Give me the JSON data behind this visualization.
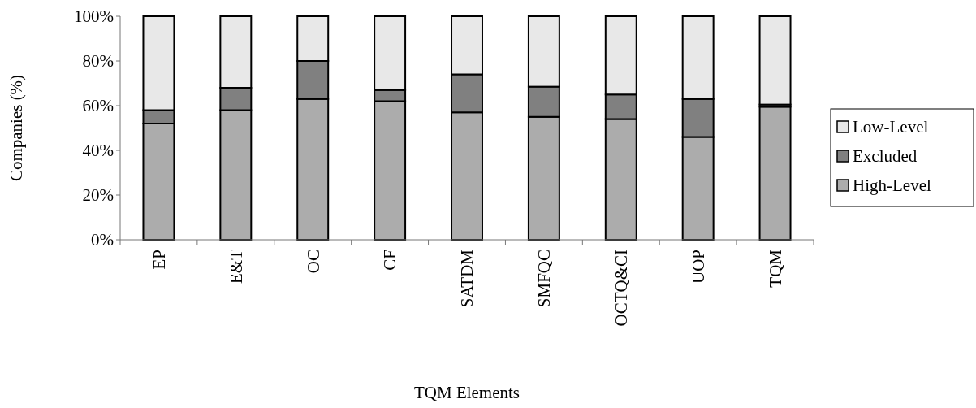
{
  "chart_data": {
    "type": "bar",
    "stacked": true,
    "xlabel": "TQM Elements",
    "ylabel": "Companies (%)",
    "categories": [
      "EP",
      "E&T",
      "OC",
      "CF",
      "SATDM",
      "SMFQC",
      "OCTQ&CI",
      "UOP",
      "TQM"
    ],
    "series": [
      {
        "name": "High-Level",
        "color": "#acacac",
        "values": [
          52,
          58,
          63,
          62,
          57,
          55,
          54,
          46,
          59.5
        ]
      },
      {
        "name": "Excluded",
        "color": "#808080",
        "values": [
          6,
          10,
          17,
          5,
          17,
          13.5,
          11,
          17,
          1
        ]
      },
      {
        "name": "Low-Level",
        "color": "#e8e8e8",
        "values": [
          42,
          32,
          20,
          33,
          26,
          31.5,
          35,
          37,
          39.5
        ]
      }
    ],
    "ylim": [
      0,
      100
    ],
    "yticks": [
      {
        "value": 0,
        "label": "0%"
      },
      {
        "value": 20,
        "label": "20%"
      },
      {
        "value": 40,
        "label": "40%"
      },
      {
        "value": 60,
        "label": "60%"
      },
      {
        "value": 80,
        "label": "80%"
      },
      {
        "value": 100,
        "label": "100%"
      }
    ],
    "grid": false,
    "legend": "right"
  }
}
